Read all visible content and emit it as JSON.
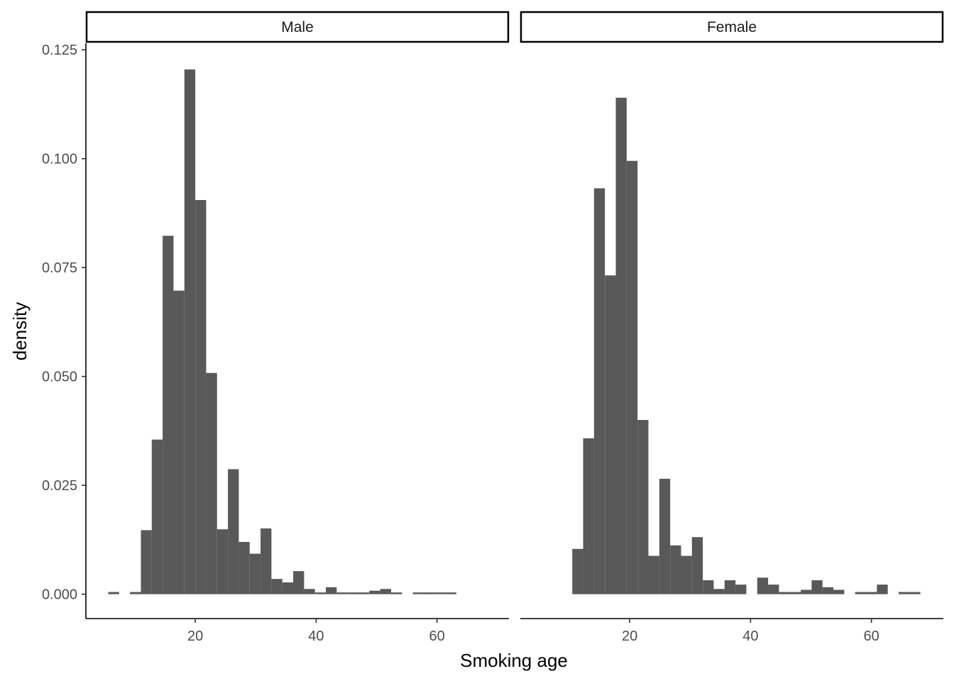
{
  "chart_data": {
    "type": "bar",
    "xlabel": "Smoking age",
    "ylabel": "density",
    "ylim": [
      -0.0056,
      0.1265
    ],
    "yticks": [
      0.0,
      0.025,
      0.05,
      0.075,
      0.1,
      0.125
    ],
    "ytick_labels": [
      "0.000",
      "0.025",
      "0.050",
      "0.075",
      "0.100",
      "0.125"
    ],
    "xticks": [
      20,
      40,
      60
    ],
    "xtick_labels": [
      "20",
      "40",
      "60"
    ],
    "bin_width": 1.8,
    "bar_color": "#595959",
    "grid": false,
    "panels": [
      {
        "label": "Male",
        "xlim": [
          1.9,
          71.9
        ],
        "bin_starts": [
          5.6,
          7.4,
          9.2,
          11.0,
          12.8,
          14.6,
          16.4,
          18.2,
          20.0,
          21.8,
          23.6,
          25.4,
          27.2,
          29.0,
          30.8,
          32.6,
          34.4,
          36.2,
          38.0,
          39.8,
          41.6,
          43.4,
          45.2,
          47.0,
          48.8,
          50.6,
          52.4,
          54.2,
          56.0,
          57.8,
          59.6,
          61.4
        ],
        "values": [
          0.0005,
          0,
          0.0005,
          0.0147,
          0.0355,
          0.0823,
          0.0697,
          0.1205,
          0.0905,
          0.0508,
          0.0149,
          0.0287,
          0.012,
          0.0093,
          0.0151,
          0.0035,
          0.0027,
          0.0053,
          0.0012,
          0.0004,
          0.0016,
          0.0004,
          0.0004,
          0.0004,
          0.0008,
          0.0012,
          0.0004,
          0,
          0.0004,
          0.0004,
          0.0004,
          0.0004
        ]
      },
      {
        "label": "Female",
        "xlim": [
          1.9,
          71.9
        ],
        "bin_starts": [
          10.5,
          12.3,
          14.1,
          15.9,
          17.7,
          19.5,
          21.3,
          23.1,
          24.9,
          26.7,
          28.5,
          30.3,
          32.1,
          33.9,
          35.7,
          37.5,
          39.3,
          41.1,
          42.9,
          44.7,
          46.5,
          48.3,
          50.1,
          51.9,
          53.7,
          55.5,
          57.3,
          59.1,
          60.9,
          62.7,
          64.5,
          66.3
        ],
        "values": [
          0.0104,
          0.0358,
          0.0932,
          0.0732,
          0.114,
          0.0995,
          0.04,
          0.0088,
          0.0265,
          0.0112,
          0.0088,
          0.0131,
          0.0032,
          0.0012,
          0.0032,
          0.0022,
          0,
          0.0038,
          0.0022,
          0.0005,
          0.0005,
          0.001,
          0.0032,
          0.0016,
          0.001,
          0,
          0.0005,
          0.0005,
          0.0022,
          0,
          0.0005,
          0.0005
        ]
      }
    ]
  }
}
